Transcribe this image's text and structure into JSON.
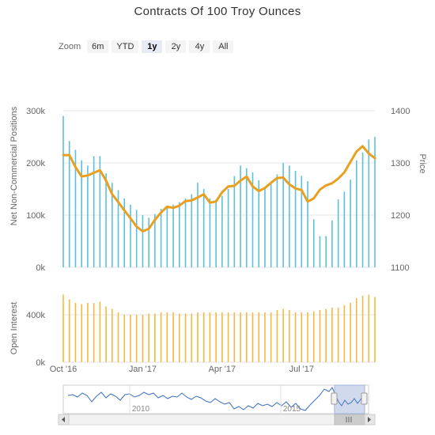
{
  "title": "Contracts Of 100 Troy Ounces",
  "zoom": {
    "label": "Zoom",
    "buttons": [
      "6m",
      "YTD",
      "1y",
      "2y",
      "4y",
      "All"
    ],
    "selected": "1y"
  },
  "colors": {
    "positions": "#5bc0de",
    "price": "#e8a021",
    "open_interest": "#f5b942",
    "grid": "#e6e6e6",
    "navigator": "#3a6ec4"
  },
  "chart_data": [
    {
      "type": "bar",
      "ylabel": "Net Non-Commercial Positions",
      "ylim": [
        0,
        300000
      ],
      "yticks": [
        "0k",
        "100k",
        "200k",
        "300k"
      ],
      "x": [
        "2016-10-04",
        "2016-10-11",
        "2016-10-18",
        "2016-10-25",
        "2016-11-01",
        "2016-11-08",
        "2016-11-15",
        "2016-11-22",
        "2016-11-29",
        "2016-12-06",
        "2016-12-13",
        "2016-12-20",
        "2016-12-27",
        "2017-01-03",
        "2017-01-10",
        "2017-01-17",
        "2017-01-24",
        "2017-01-31",
        "2017-02-07",
        "2017-02-14",
        "2017-02-21",
        "2017-02-28",
        "2017-03-07",
        "2017-03-14",
        "2017-03-21",
        "2017-03-28",
        "2017-04-04",
        "2017-04-11",
        "2017-04-18",
        "2017-04-25",
        "2017-05-02",
        "2017-05-09",
        "2017-05-16",
        "2017-05-23",
        "2017-05-30",
        "2017-06-06",
        "2017-06-13",
        "2017-06-20",
        "2017-06-27",
        "2017-07-04",
        "2017-07-11",
        "2017-07-18",
        "2017-07-25",
        "2017-08-01",
        "2017-08-08",
        "2017-08-15",
        "2017-08-22",
        "2017-08-29",
        "2017-09-05",
        "2017-09-12",
        "2017-09-19",
        "2017-09-26"
      ],
      "values": [
        290000,
        242000,
        225000,
        205000,
        195000,
        213000,
        213000,
        180000,
        162000,
        148000,
        132000,
        120000,
        110000,
        100000,
        95000,
        102000,
        112000,
        118000,
        120000,
        125000,
        132000,
        140000,
        162000,
        150000,
        132000,
        130000,
        137000,
        150000,
        175000,
        195000,
        190000,
        182000,
        167000,
        154000,
        162000,
        178000,
        200000,
        195000,
        185000,
        175000,
        165000,
        92000,
        60000,
        60000,
        90000,
        130000,
        145000,
        168000,
        205000,
        220000,
        245000,
        250000
      ]
    },
    {
      "type": "line",
      "ylabel": "Price",
      "ylim": [
        1100,
        1400
      ],
      "yticks": [
        "1100",
        "1200",
        "1300",
        "1400"
      ],
      "xticks": [
        "Oct '16",
        "Jan '17",
        "Apr '17",
        "Jul '17"
      ],
      "values": [
        1315,
        1315,
        1292,
        1274,
        1276,
        1281,
        1286,
        1266,
        1240,
        1225,
        1209,
        1194,
        1178,
        1169,
        1174,
        1191,
        1205,
        1216,
        1214,
        1218,
        1227,
        1228,
        1234,
        1240,
        1224,
        1226,
        1244,
        1255,
        1256,
        1266,
        1274,
        1255,
        1246,
        1252,
        1262,
        1271,
        1272,
        1259,
        1251,
        1248,
        1226,
        1232,
        1249,
        1257,
        1261,
        1270,
        1282,
        1302,
        1322,
        1332,
        1318,
        1309
      ]
    },
    {
      "type": "bar",
      "ylabel": "Open Interest",
      "ylim": [
        0,
        600000
      ],
      "yticks": [
        "0k",
        "400k"
      ],
      "values": [
        570000,
        530000,
        500000,
        490000,
        500000,
        500000,
        510000,
        470000,
        450000,
        420000,
        400000,
        400000,
        400000,
        400000,
        410000,
        410000,
        420000,
        420000,
        420000,
        410000,
        410000,
        410000,
        420000,
        420000,
        420000,
        420000,
        420000,
        420000,
        420000,
        420000,
        420000,
        420000,
        420000,
        420000,
        420000,
        440000,
        450000,
        440000,
        420000,
        420000,
        420000,
        430000,
        440000,
        450000,
        460000,
        460000,
        480000,
        500000,
        540000,
        560000,
        570000,
        550000
      ]
    },
    {
      "type": "line",
      "name": "navigator",
      "xticks": [
        "2010",
        "2015"
      ]
    }
  ]
}
